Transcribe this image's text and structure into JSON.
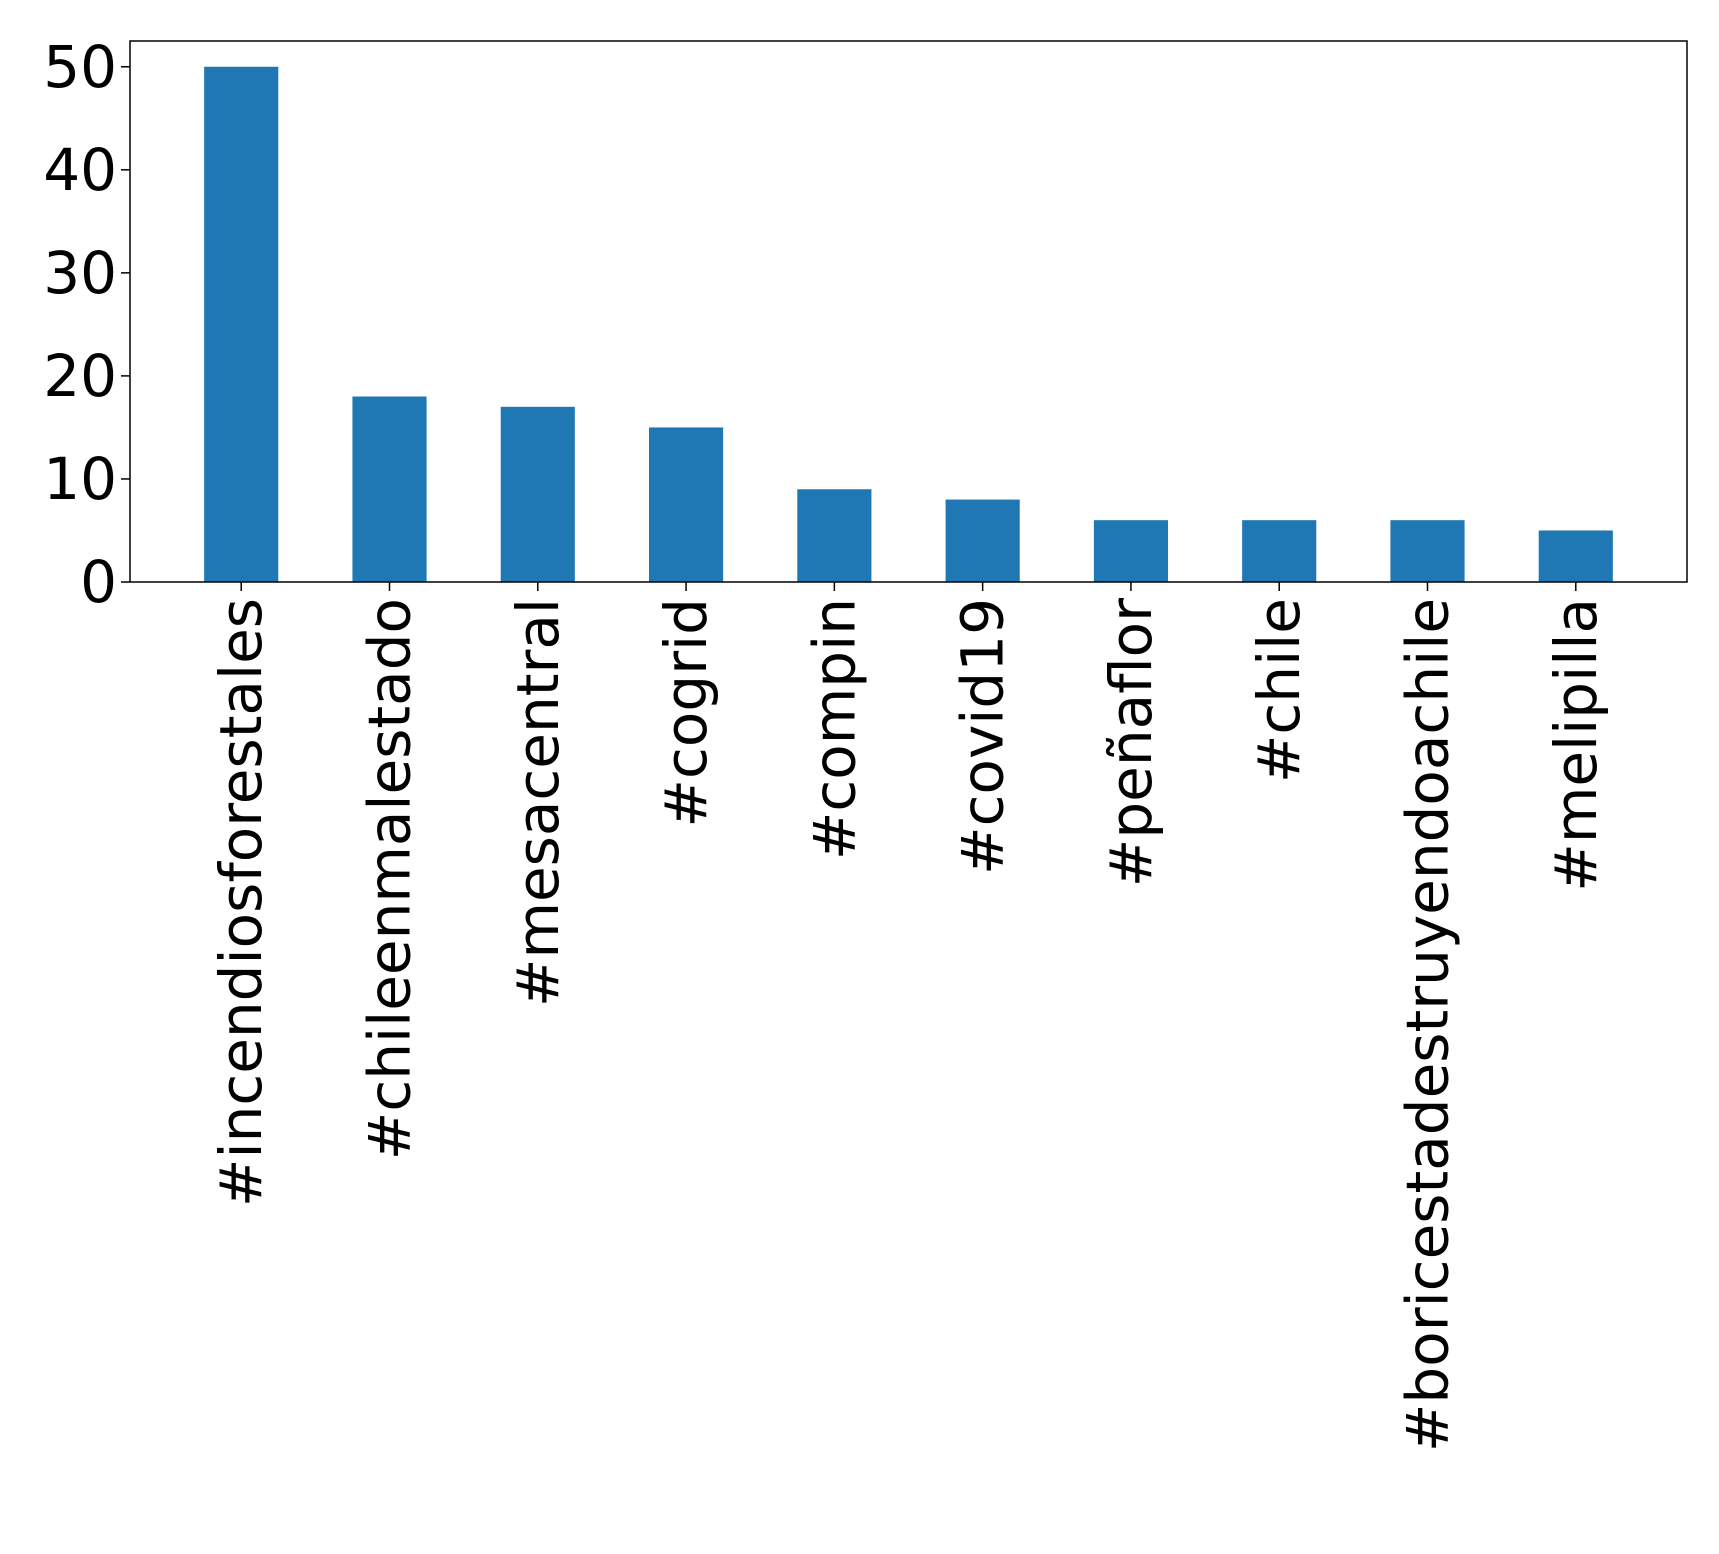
{
  "chart_data": {
    "type": "bar",
    "title": "",
    "xlabel": "",
    "ylabel": "",
    "categories": [
      "#incendiosforestales",
      "#chileenmalestado",
      "#mesacentral",
      "#cogrid",
      "#compin",
      "#covid19",
      "#peñaflor",
      "#chile",
      "#boricestadestruyendoachile",
      "#melipilla"
    ],
    "values": [
      50,
      18,
      17,
      15,
      9,
      8,
      6,
      6,
      6,
      5
    ],
    "ylim": [
      0,
      52.5
    ],
    "yticks": [
      0,
      10,
      20,
      30,
      40,
      50
    ],
    "grid": false,
    "legend": "none",
    "colors": {
      "bar": "#1f77b4",
      "axis": "#000000",
      "background": "#ffffff"
    }
  }
}
